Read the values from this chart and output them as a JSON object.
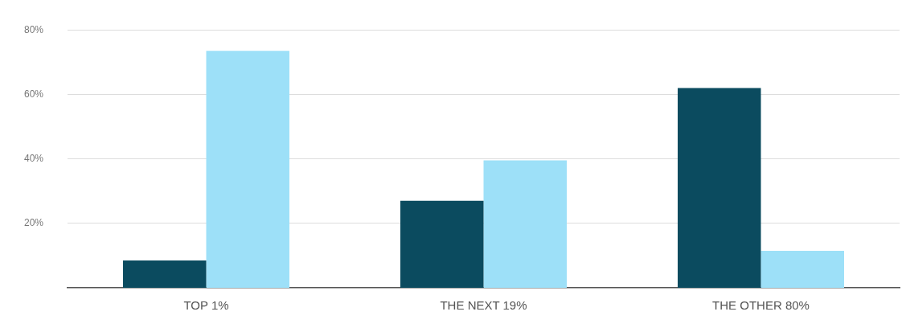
{
  "chart_data": {
    "type": "bar",
    "categories": [
      "TOP 1%",
      "THE NEXT 19%",
      "THE OTHER 80%"
    ],
    "series": [
      {
        "color": "#0b4b5f",
        "values": [
          8.5,
          27,
          62
        ]
      },
      {
        "color": "#9de0f8",
        "values": [
          73.5,
          39.5,
          11.5
        ]
      }
    ],
    "ylim": [
      0,
      80
    ],
    "yticks": [
      {
        "value": 20,
        "label": "20%"
      },
      {
        "value": 40,
        "label": "40%"
      },
      {
        "value": 60,
        "label": "60%"
      },
      {
        "value": 80,
        "label": "80%"
      }
    ],
    "grid": "y",
    "legend": false
  }
}
